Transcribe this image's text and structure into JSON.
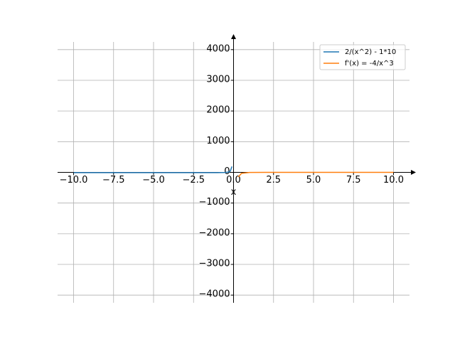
{
  "chart_data": {
    "type": "line",
    "xlabel": "x",
    "series": [
      {
        "name": "2/(x^2) - 1*10",
        "color": "#1f77b4",
        "x": [
          -10,
          -5,
          -2,
          -1,
          -0.5,
          -0.3,
          -0.2,
          -0.1
        ],
        "values": [
          -9.98,
          -9.92,
          -9.5,
          -8,
          -2,
          12.2,
          40,
          190
        ]
      },
      {
        "name": "f'(x) = -4/x^3",
        "color": "#ff7f0e",
        "x": [
          0.3,
          0.5,
          1,
          2,
          5,
          10
        ],
        "values": [
          -148.1,
          -32,
          -4,
          -0.5,
          -0.03,
          -0.004
        ]
      }
    ],
    "xlim": [
      -11,
      11
    ],
    "ylim": [
      -4250,
      4250
    ],
    "xticks": [
      {
        "value": -10,
        "label": "−10.0"
      },
      {
        "value": -7.5,
        "label": "−7.5"
      },
      {
        "value": -5,
        "label": "−5.0"
      },
      {
        "value": -2.5,
        "label": "−2.5"
      },
      {
        "value": 0,
        "label": "0.0"
      },
      2.5,
      {
        "value": 5,
        "label": "5.0"
      },
      7.5,
      {
        "value": 10,
        "label": "10.0"
      }
    ],
    "yticks": [
      {
        "value": -4000,
        "label": "−4000"
      },
      {
        "value": -3000,
        "label": "−3000"
      },
      {
        "value": -2000,
        "label": "−2000"
      },
      {
        "value": -1000,
        "label": "−1000"
      },
      0,
      1000,
      2000,
      3000,
      4000
    ],
    "grid": true,
    "legend": "upper right"
  }
}
